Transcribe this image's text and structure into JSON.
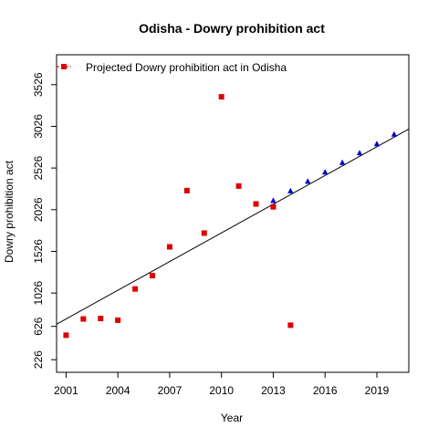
{
  "chart_data": {
    "type": "scatter",
    "title": "Odisha  -  Dowry prohibition act",
    "xlabel": "Year",
    "ylabel": "Dowry prohibition act",
    "xlim": [
      2000.45,
      2020.85
    ],
    "ylim": [
      75,
      3885
    ],
    "x_ticks": [
      2001,
      2004,
      2007,
      2010,
      2013,
      2016,
      2019
    ],
    "y_ticks": [
      226,
      626,
      1026,
      1526,
      2026,
      2526,
      3026,
      3526
    ],
    "legend": {
      "position": "top-left",
      "entries": [
        "Projected  Dowry prohibition act  in  Odisha"
      ]
    },
    "series": [
      {
        "name": "",
        "marker": "square",
        "color": "#dd0000",
        "x": [
          2001,
          2002,
          2003,
          2004,
          2005,
          2006,
          2007,
          2008,
          2009,
          2010,
          2011,
          2012,
          2013,
          2014
        ],
        "y": [
          520,
          715,
          720,
          700,
          1075,
          1235,
          1580,
          2255,
          1745,
          3380,
          2310,
          2095,
          2060,
          640
        ]
      },
      {
        "name": "Projected  Dowry prohibition act  in  Odisha",
        "marker": "triangle",
        "color": "#0000cc",
        "x": [
          2013,
          2014,
          2015,
          2016,
          2017,
          2018,
          2019,
          2020
        ],
        "y": [
          2135,
          2250,
          2365,
          2475,
          2590,
          2705,
          2815,
          2930
        ]
      }
    ],
    "trend_line": {
      "color": "#000000",
      "x": [
        2000.45,
        2020.85
      ],
      "y": [
        652,
        2993
      ]
    }
  }
}
